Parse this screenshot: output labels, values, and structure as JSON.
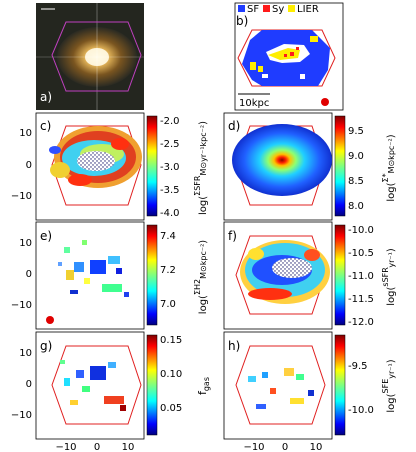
{
  "panels": [
    {
      "id": "a",
      "label": "a)"
    },
    {
      "id": "b",
      "label": "b)"
    },
    {
      "id": "c",
      "label": "c)"
    },
    {
      "id": "d",
      "label": "d)"
    },
    {
      "id": "e",
      "label": "e)"
    },
    {
      "id": "f",
      "label": "f)"
    },
    {
      "id": "g",
      "label": "g)"
    },
    {
      "id": "h",
      "label": "h)"
    }
  ],
  "legend": {
    "sf": {
      "label": "SF",
      "color": "#1f3cff"
    },
    "sy": {
      "label": "Sy",
      "color": "#ff1a1a"
    },
    "lier": {
      "label": "LIER",
      "color": "#ffee00"
    }
  },
  "scalebar": "10kpc",
  "colorbars": {
    "c": {
      "ticks": [
        "-2.0",
        "-2.5",
        "-3.0",
        "-3.5",
        "-4.0"
      ]
    },
    "d": {
      "ticks": [
        "9.5",
        "9.0",
        "8.5",
        "8.0"
      ]
    },
    "e": {
      "ticks": [
        "7.4",
        "7.2",
        "7.0"
      ]
    },
    "f": {
      "ticks": [
        "-10.0",
        "-10.5",
        "-11.0",
        "-11.5",
        "-12.0"
      ]
    },
    "g": {
      "ticks": [
        "0.15",
        "0.10",
        "0.05"
      ]
    },
    "h": {
      "ticks": [
        "-9.5",
        "-10.0"
      ]
    }
  },
  "cblabels": {
    "c": {
      "a": "log(",
      "b": "ΣSFR",
      "c": "M⊙yr⁻¹kpc⁻²",
      "d": ")"
    },
    "d": {
      "a": "log(",
      "b": "Σ*",
      "c": "M⊙kpc⁻²",
      "d": ")"
    },
    "e": {
      "a": "log(",
      "b": "ΣH2",
      "c": "M⊙kpc⁻²",
      "d": ")"
    },
    "f": {
      "a": "log(",
      "b": "sSFR",
      "c": "yr⁻¹",
      "d": ")"
    },
    "g": {
      "a": "f",
      "b": "gas",
      "c": "",
      "d": ""
    },
    "h": {
      "a": "log(",
      "b": "SFE",
      "c": "yr⁻¹",
      "d": ")"
    }
  },
  "yticks": [
    "10",
    "0",
    "−10"
  ],
  "xticks": [
    "−10",
    "0",
    "10"
  ],
  "colors": {
    "jet_low": "#00007f",
    "jet_high": "#7f0000",
    "hex": "#e02020",
    "pink": "#c040c0"
  }
}
